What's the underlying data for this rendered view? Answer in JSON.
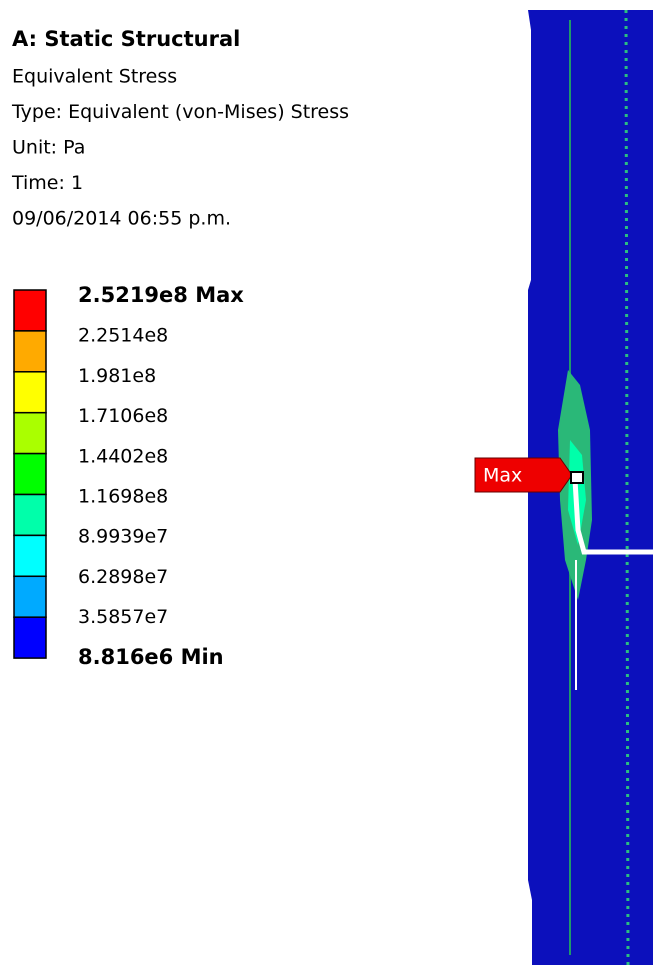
{
  "header": {
    "title": "A: Static Structural",
    "lines": [
      "Equivalent Stress",
      "Type: Equivalent (von-Mises) Stress",
      "Unit: Pa",
      "Time: 1",
      "09/06/2014 06:55 p.m."
    ]
  },
  "legend": {
    "labels": [
      "2.5219e8 Max",
      "2.2514e8",
      "1.981e8",
      "1.7106e8",
      "1.4402e8",
      "1.1698e8",
      "8.9939e7",
      "6.2898e7",
      "3.5857e7",
      "8.816e6 Min"
    ],
    "colors": [
      "#ff0000",
      "#ffaa00",
      "#ffff00",
      "#aaff00",
      "#00ff00",
      "#00ffaa",
      "#00ffff",
      "#00aaff",
      "#0000ff"
    ]
  },
  "probe": {
    "label": "Max"
  }
}
